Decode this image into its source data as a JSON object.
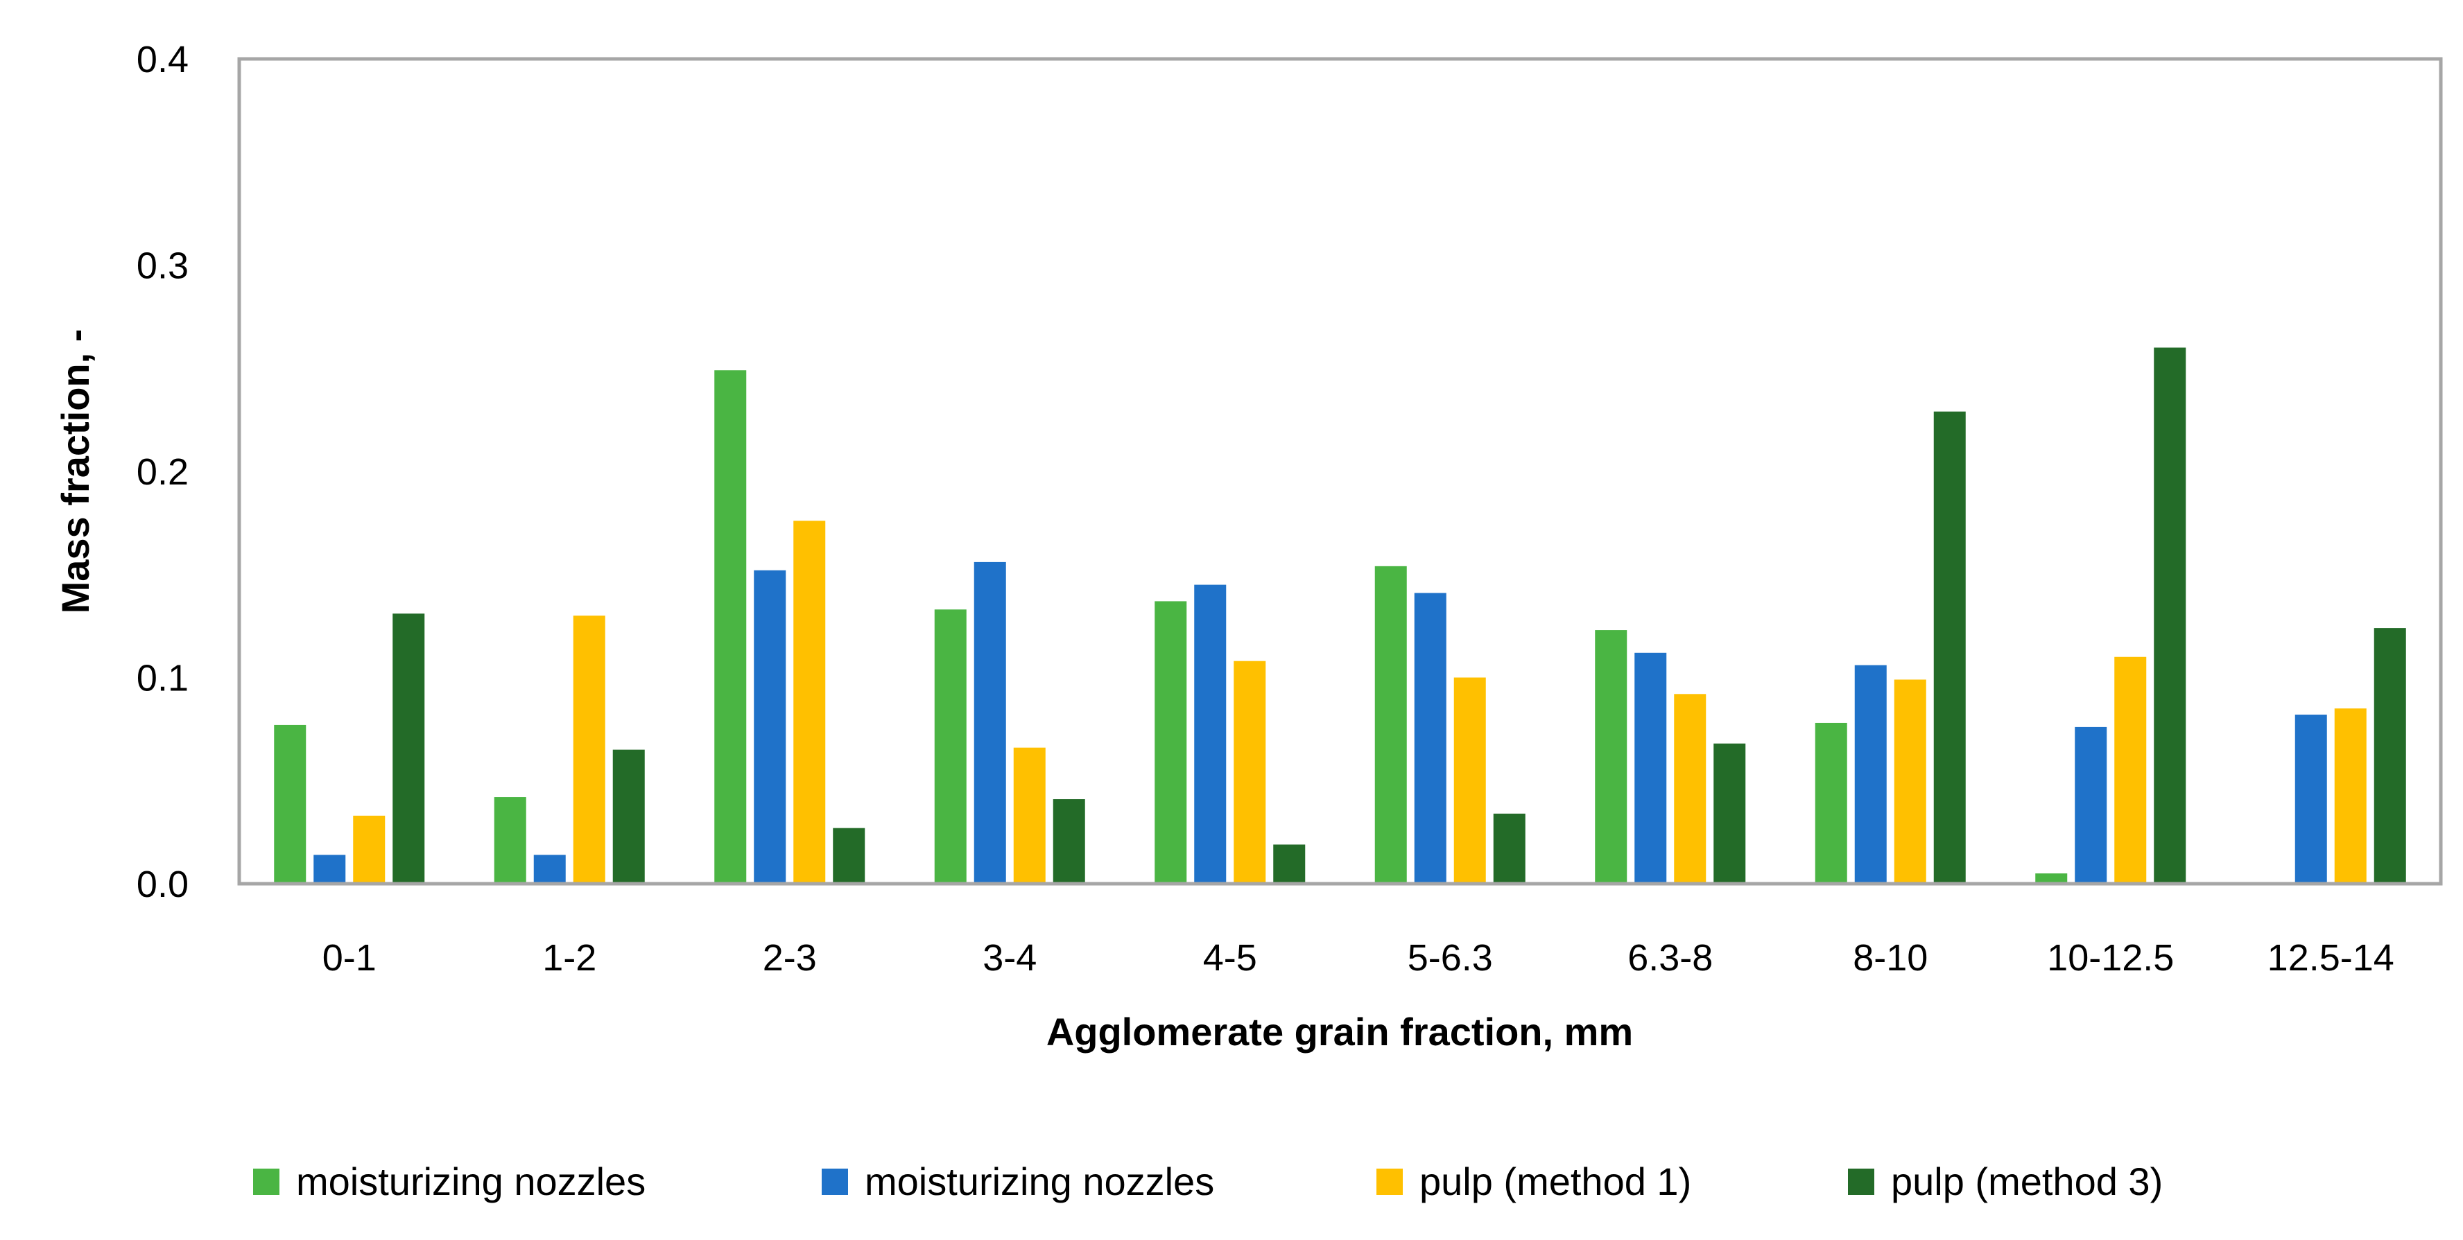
{
  "chart_data": {
    "type": "bar",
    "title": "",
    "xlabel": "Agglomerate grain fraction, mm",
    "ylabel": "Mass fraction, -",
    "ylim": [
      0,
      0.4
    ],
    "yticks": [
      "0.0",
      "0.1",
      "0.2",
      "0.3",
      "0.4"
    ],
    "grid": false,
    "legend_position": "bottom",
    "categories": [
      "0-1",
      "1-2",
      "2-3",
      "3-4",
      "4-5",
      "5-6.3",
      "6.3-8",
      "8-10",
      "10-12.5",
      "12.5-14"
    ],
    "series": [
      {
        "name": "moisturizing nozzles",
        "color": "#4ab543",
        "values": [
          0.077,
          0.042,
          0.249,
          0.133,
          0.137,
          0.154,
          0.123,
          0.078,
          0.005,
          0
        ]
      },
      {
        "name": "moisturizing nozzles",
        "color": "#1f72c9",
        "values": [
          0.014,
          0.014,
          0.152,
          0.156,
          0.145,
          0.141,
          0.112,
          0.106,
          0.076,
          0.082
        ]
      },
      {
        "name": "pulp (method 1)",
        "color": "#ffc000",
        "values": [
          0.033,
          0.13,
          0.176,
          0.066,
          0.108,
          0.1,
          0.092,
          0.099,
          0.11,
          0.085
        ]
      },
      {
        "name": "pulp (method 3)",
        "color": "#236b28",
        "values": [
          0.131,
          0.065,
          0.027,
          0.041,
          0.019,
          0.034,
          0.068,
          0.229,
          0.26,
          0.124
        ]
      }
    ]
  }
}
